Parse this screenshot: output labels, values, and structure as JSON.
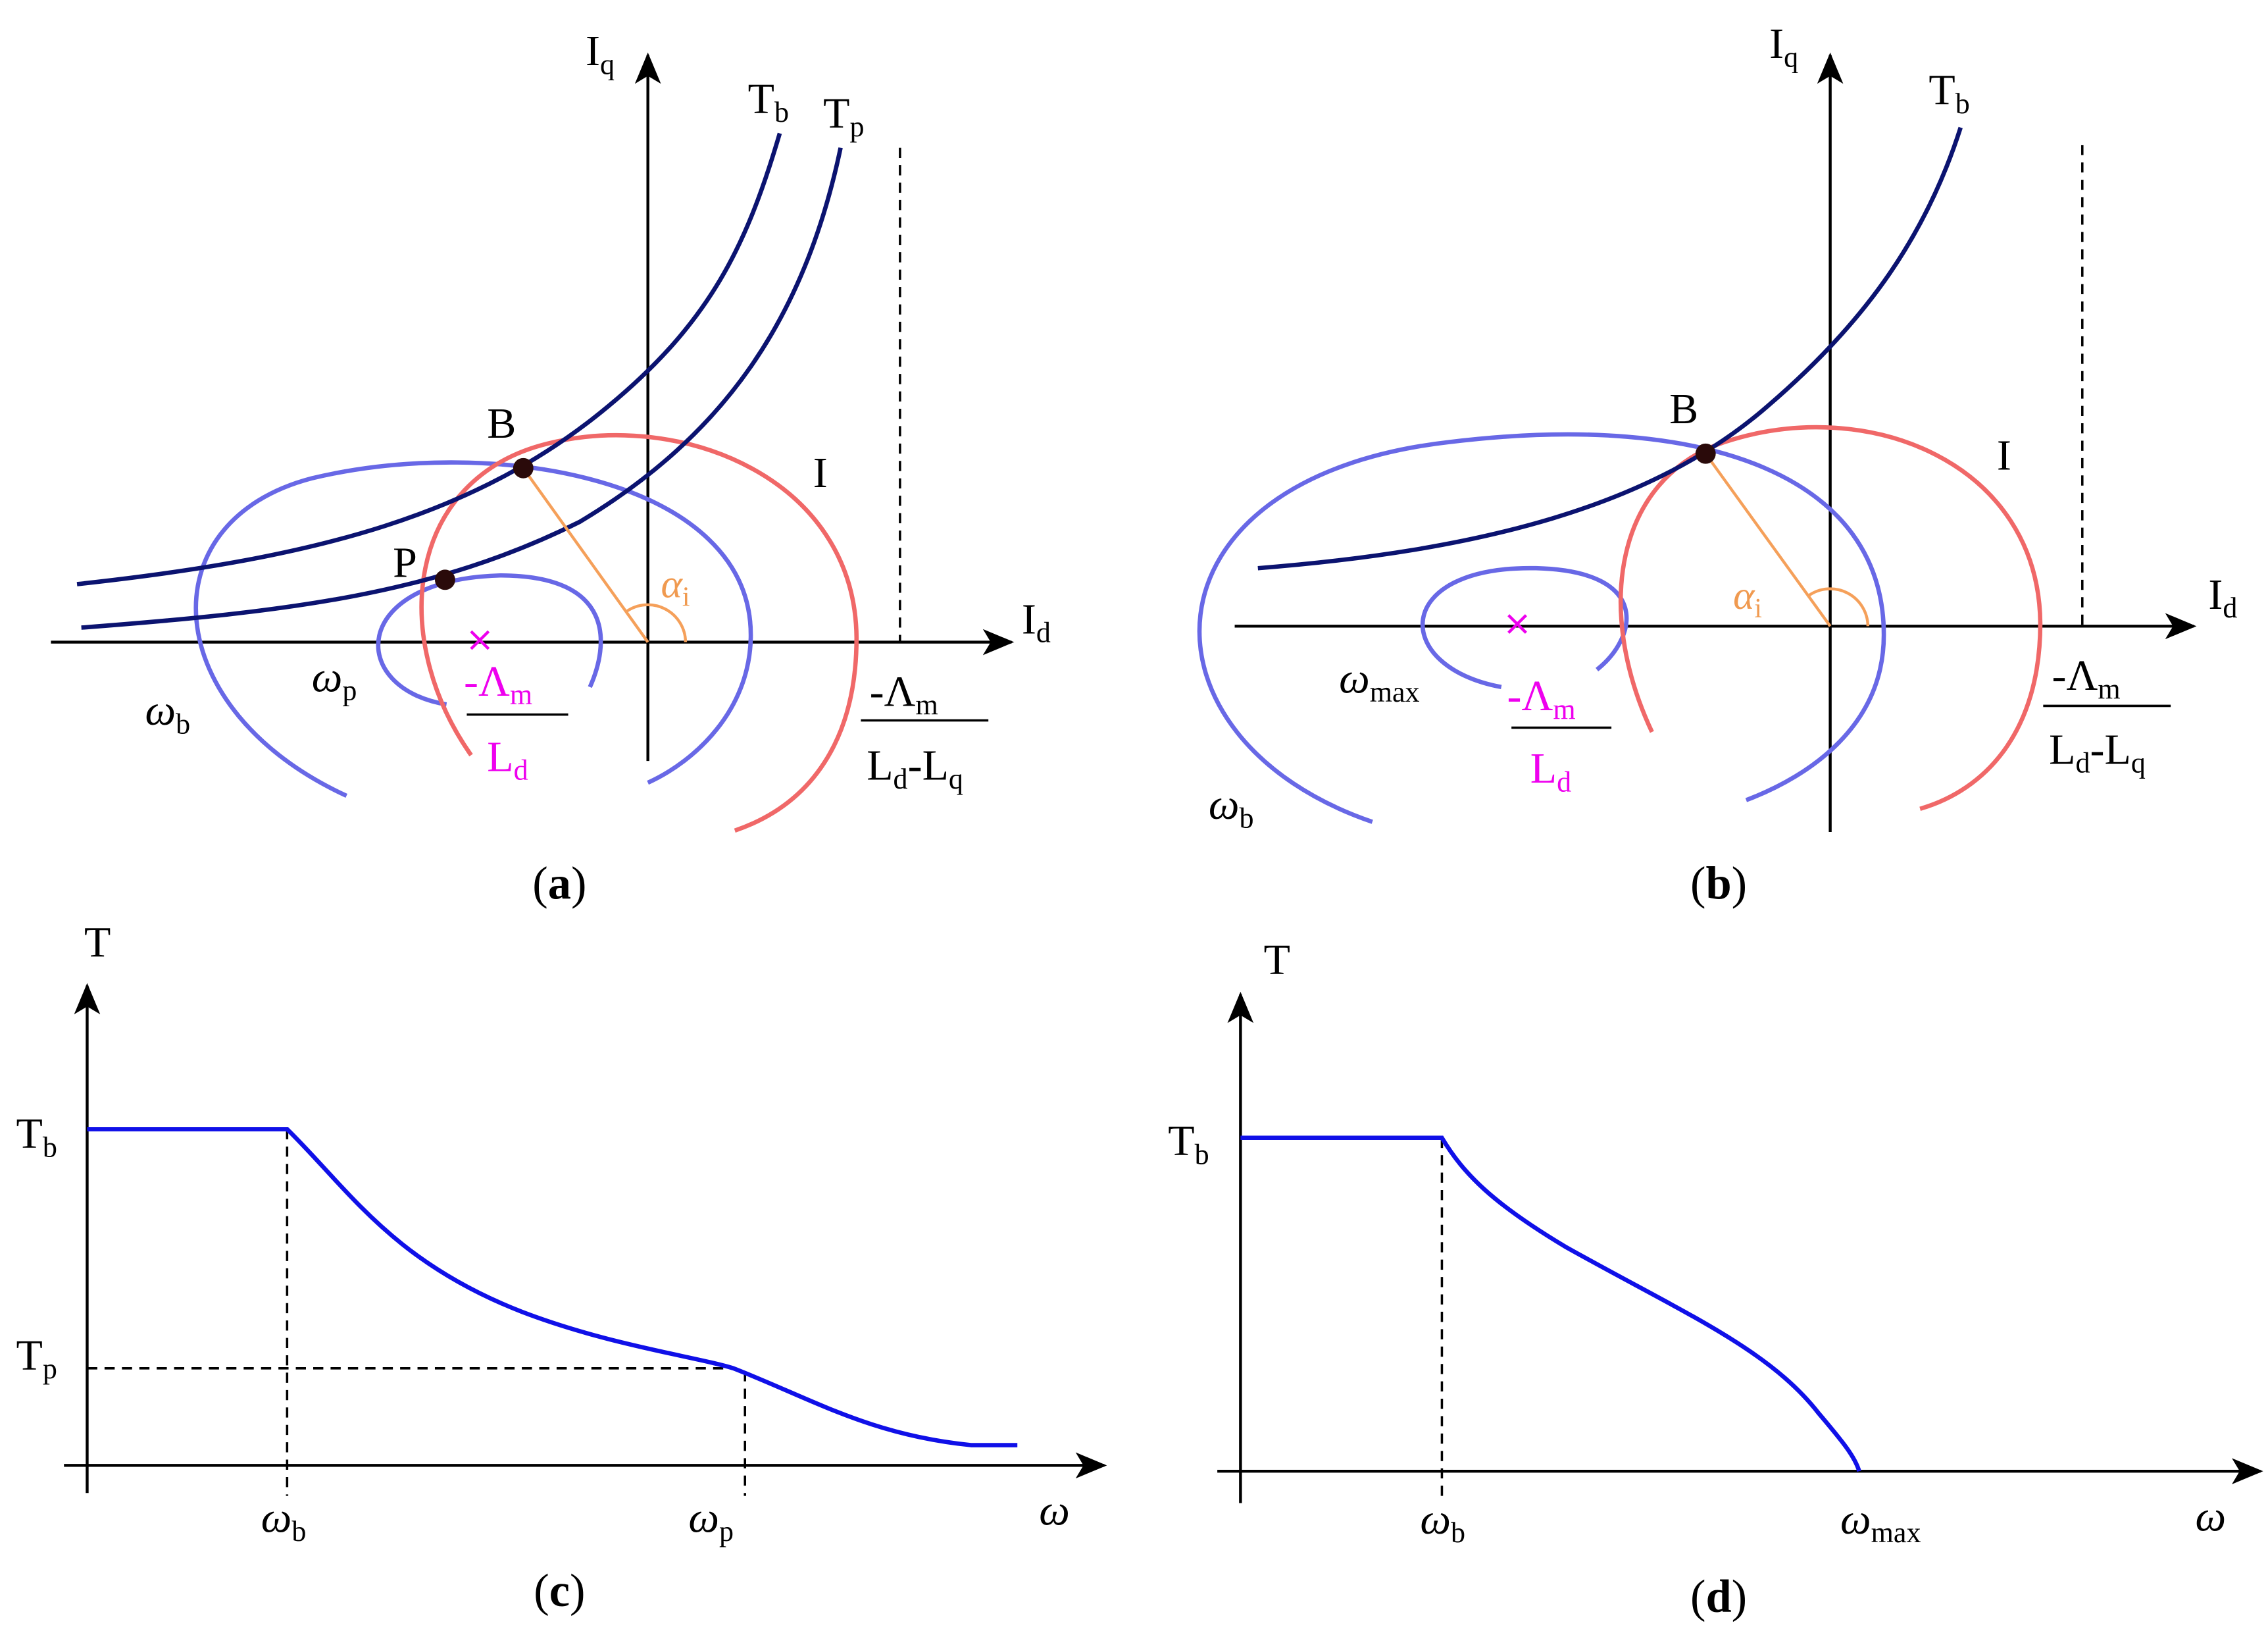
{
  "colors": {
    "axis": "#000000",
    "torque_curve": "#0b1370",
    "speed_ellipse": "#6868e6",
    "current_circle": "#f06868",
    "angle": "#f5a05a",
    "center_mark": "#ee00ee",
    "tn_curve": "#1010e8"
  },
  "panel_a": {
    "caption_open": "(",
    "caption_letter": "a",
    "caption_close": ")",
    "axis_x": {
      "main": "I",
      "sub": "d"
    },
    "axis_y": {
      "main": "I",
      "sub": "q"
    },
    "curve_tb": {
      "main": "T",
      "sub": "b"
    },
    "curve_tp": {
      "main": "T",
      "sub": "p"
    },
    "circle_label": "I",
    "point_b": "B",
    "point_p": "P",
    "angle": {
      "main": "α",
      "sub": "i"
    },
    "omega_b": {
      "main": "ω",
      "sub": "b"
    },
    "omega_p": {
      "main": "ω",
      "sub": "p"
    },
    "center_num": {
      "main": "-Λ",
      "sub": "m"
    },
    "center_den": {
      "main": "L",
      "sub": "d"
    },
    "asym_num": {
      "main": "-Λ",
      "sub": "m"
    },
    "asym_den": {
      "a": "L",
      "a_sub": "d",
      "dash": "-L",
      "b_sub": "q"
    }
  },
  "panel_b": {
    "caption_open": "(",
    "caption_letter": "b",
    "caption_close": ")",
    "axis_x": {
      "main": "I",
      "sub": "d"
    },
    "axis_y": {
      "main": "I",
      "sub": "q"
    },
    "curve_tb": {
      "main": "T",
      "sub": "b"
    },
    "circle_label": "I",
    "point_b": "B",
    "angle": {
      "main": "α",
      "sub": "i"
    },
    "omega_b": {
      "main": "ω",
      "sub": "b"
    },
    "omega_max": {
      "main": "ω",
      "sub": "max"
    },
    "center_num": {
      "main": "-Λ",
      "sub": "m"
    },
    "center_den": {
      "main": "L",
      "sub": "d"
    },
    "asym_num": {
      "main": "-Λ",
      "sub": "m"
    },
    "asym_den": {
      "a": "L",
      "a_sub": "d",
      "dash": "-L",
      "b_sub": "q"
    }
  },
  "panel_c": {
    "caption_open": "(",
    "caption_letter": "c",
    "caption_close": ")",
    "axis_y": "T",
    "axis_x": "ω",
    "tick_tb": {
      "main": "T",
      "sub": "b"
    },
    "tick_tp": {
      "main": "T",
      "sub": "p"
    },
    "tick_wb": {
      "main": "ω",
      "sub": "b"
    },
    "tick_wp": {
      "main": "ω",
      "sub": "p"
    }
  },
  "panel_d": {
    "caption_open": "(",
    "caption_letter": "d",
    "caption_close": ")",
    "axis_y": "T",
    "axis_x": "ω",
    "tick_tb": {
      "main": "T",
      "sub": "b"
    },
    "tick_wb": {
      "main": "ω",
      "sub": "b"
    },
    "tick_wmax": {
      "main": "ω",
      "sub": "max"
    }
  }
}
